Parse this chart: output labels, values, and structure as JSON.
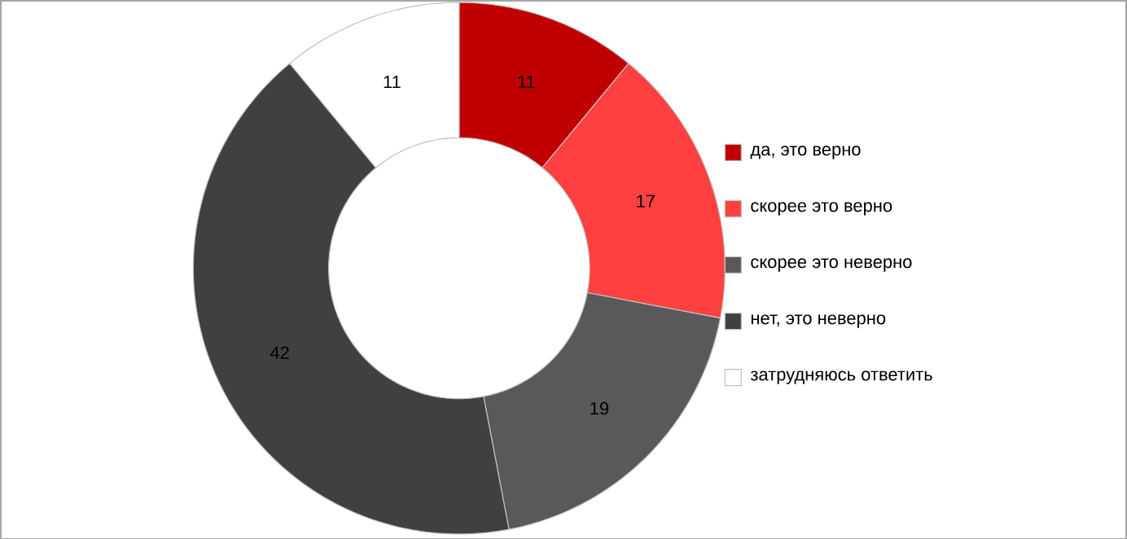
{
  "chart_data": {
    "type": "donut",
    "categories": [
      "да, это верно",
      "скорее это верно",
      "скорее это неверно",
      "нет, это неверно",
      "затрудняюсь ответить"
    ],
    "values": [
      11,
      17,
      19,
      42,
      11
    ],
    "colors": [
      "#c00000",
      "#ff4040",
      "#595959",
      "#404040",
      "#ffffff"
    ],
    "data_labels": true,
    "legend": "right"
  }
}
